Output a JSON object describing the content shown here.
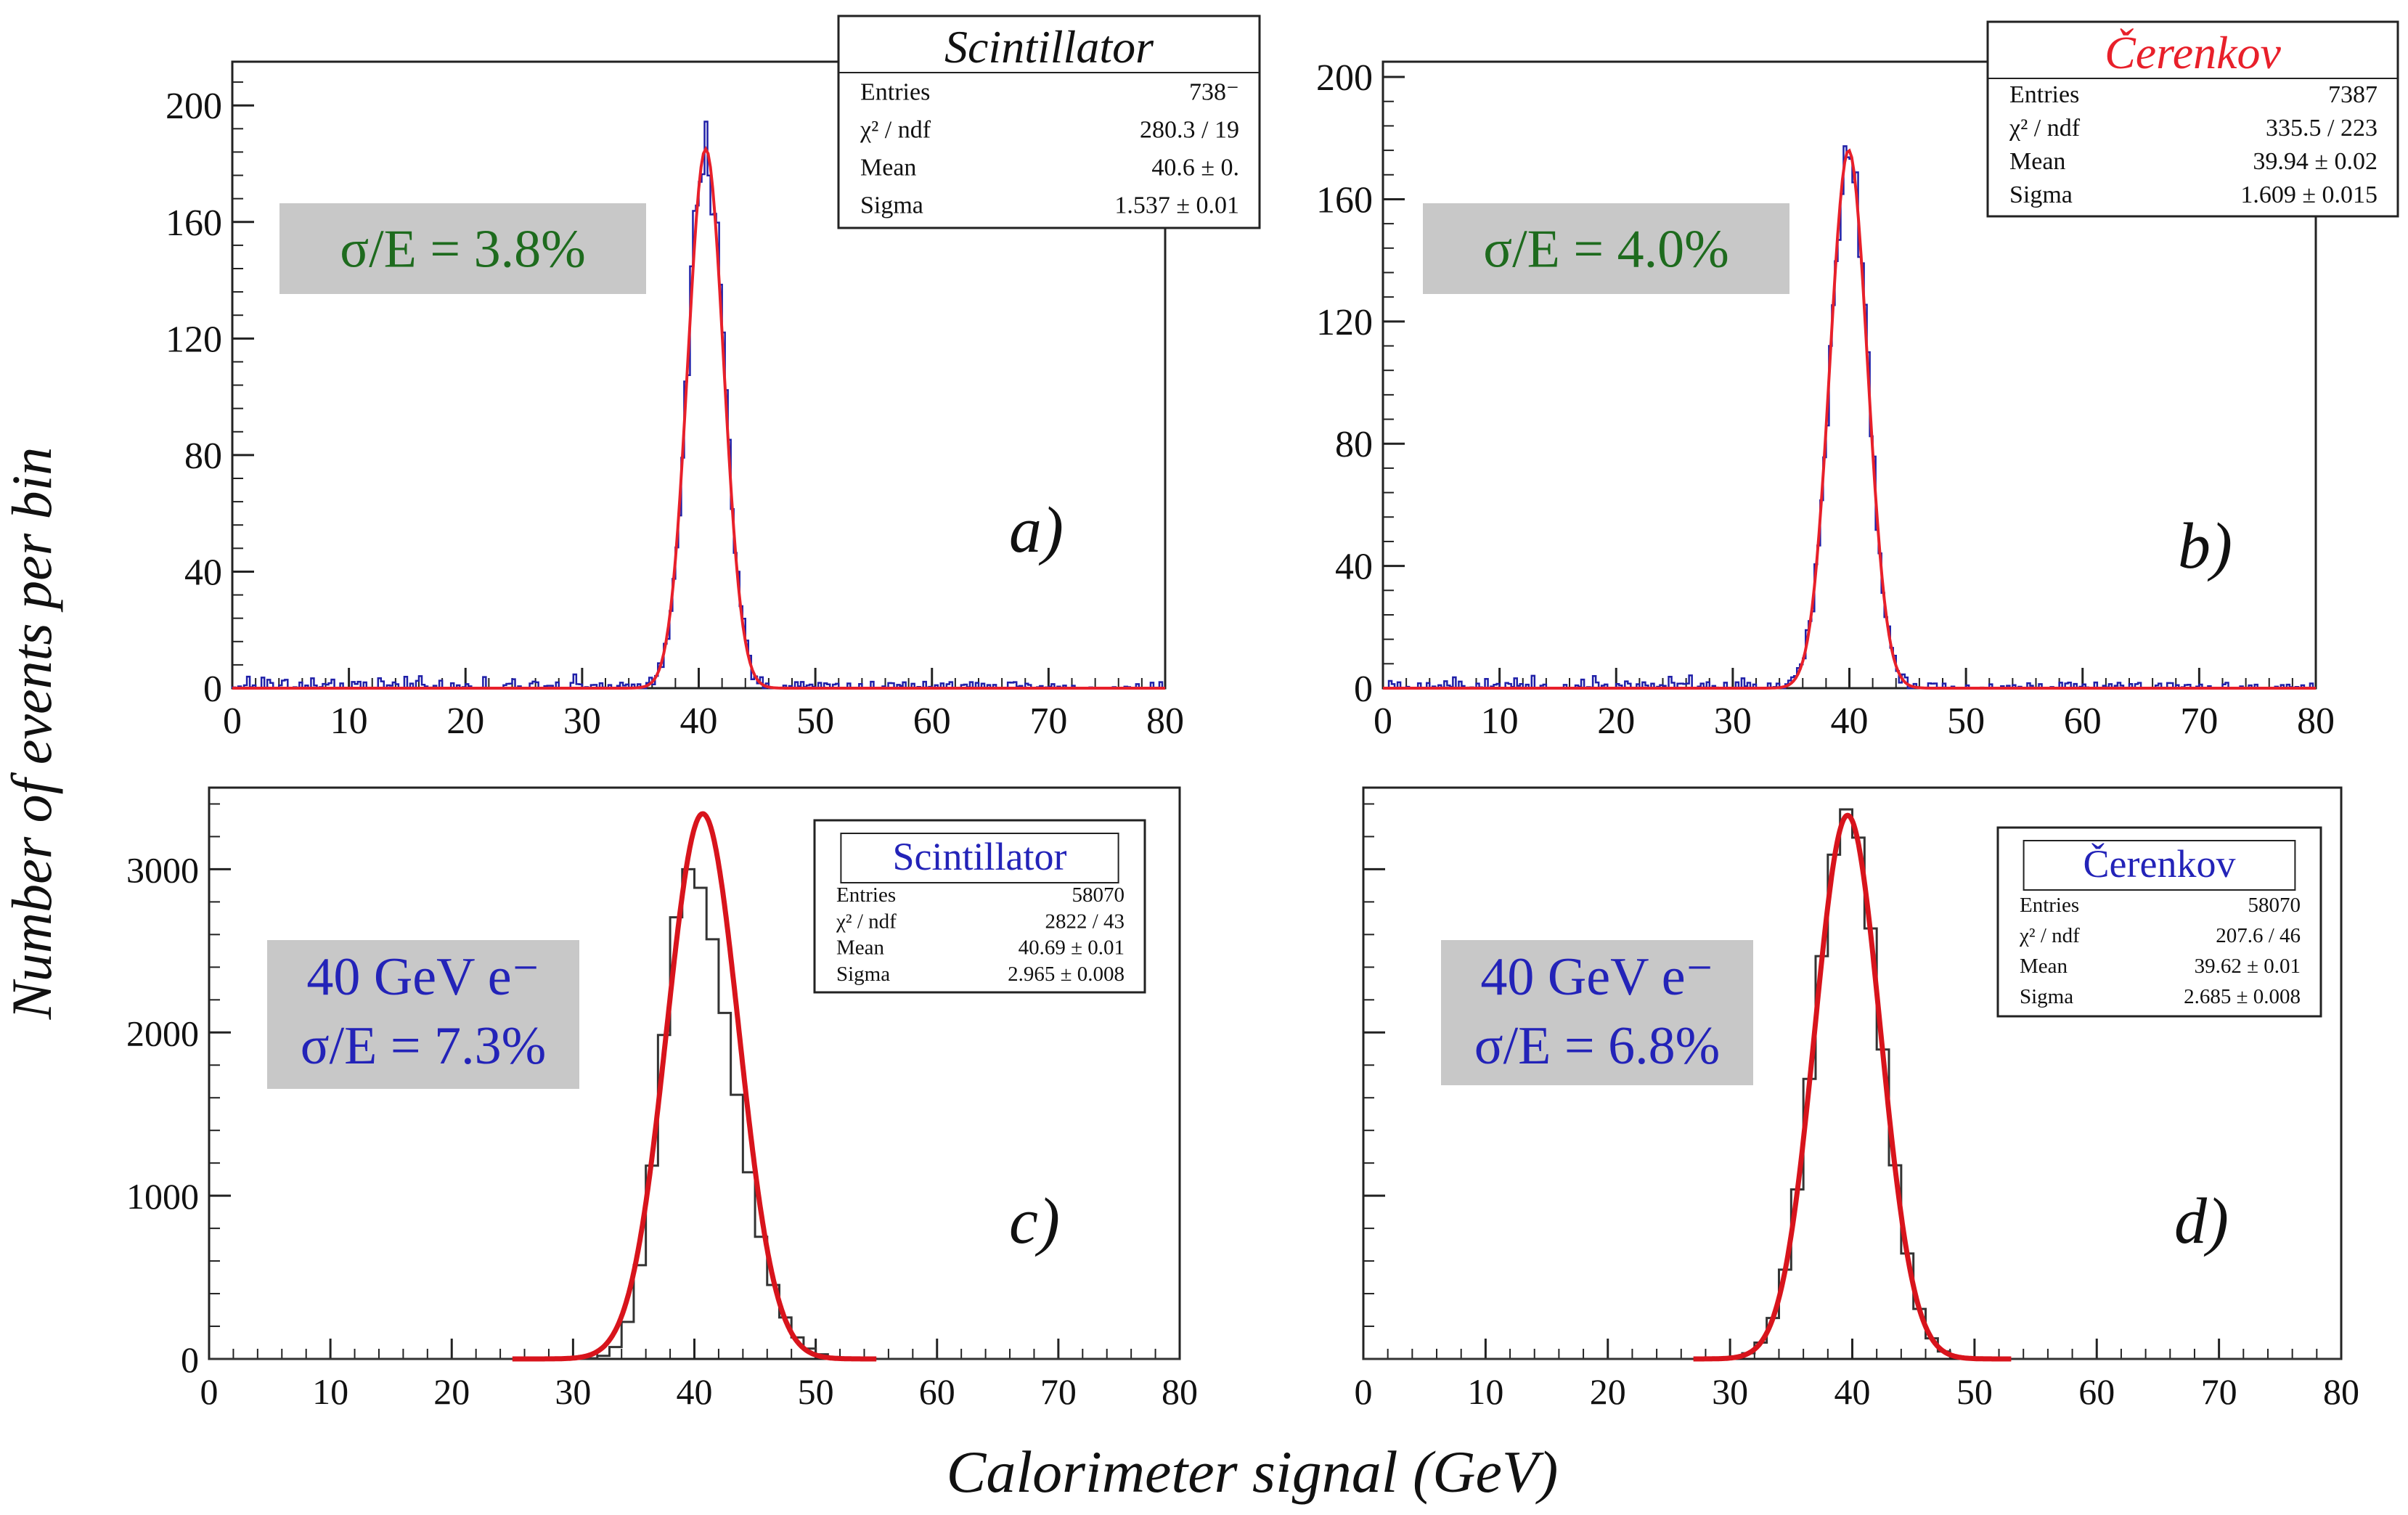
{
  "figure": {
    "ylabel": "Number of events per bin",
    "xlabel": "Calorimeter signal (GeV)"
  },
  "chart_data": [
    {
      "id": "a",
      "type": "histogram",
      "panel_label": "a)",
      "xlim": [
        0,
        80
      ],
      "ylim": [
        0,
        215
      ],
      "xticks": [
        0,
        10,
        20,
        30,
        40,
        50,
        60,
        70,
        80
      ],
      "yticks": [
        0,
        40,
        80,
        120,
        160,
        200
      ],
      "series": [
        {
          "kind": "histogram",
          "color": "#1f1fa8",
          "shape": "gauss",
          "mean": 40.6,
          "sigma": 1.537,
          "peak": 185,
          "noise": 14,
          "bins": 320
        },
        {
          "kind": "fit",
          "color": "#e8202a",
          "mean": 40.6,
          "sigma": 1.537,
          "peak": 185
        }
      ],
      "stats": {
        "title": "Scintillator",
        "title_color": "#111111",
        "title_style": "italic",
        "rows": [
          {
            "label": "Entries",
            "value": "738⁻"
          },
          {
            "label": "χ² / ndf",
            "value": "280.3 / 19"
          },
          {
            "label": "Mean",
            "value": "40.6 ± 0."
          },
          {
            "label": "Sigma",
            "value": "1.537 ± 0.01"
          }
        ]
      },
      "annotation": {
        "lines": [
          "σ/E = 3.8%"
        ],
        "color": "#1e6b1e"
      }
    },
    {
      "id": "b",
      "type": "histogram",
      "panel_label": "b)",
      "xlim": [
        0,
        80
      ],
      "ylim": [
        0,
        205
      ],
      "xticks": [
        0,
        10,
        20,
        30,
        40,
        50,
        60,
        70,
        80
      ],
      "yticks": [
        0,
        40,
        80,
        120,
        160,
        200
      ],
      "series": [
        {
          "kind": "histogram",
          "color": "#1f1fa8",
          "shape": "gauss",
          "mean": 39.94,
          "sigma": 1.609,
          "peak": 176,
          "noise": 12,
          "bins": 320
        },
        {
          "kind": "fit",
          "color": "#e8202a",
          "mean": 39.94,
          "sigma": 1.609,
          "peak": 176
        }
      ],
      "stats": {
        "title": "Čerenkov",
        "title_color": "#e8202a",
        "title_style": "italic",
        "rows": [
          {
            "label": "Entries",
            "value": "7387"
          },
          {
            "label": "χ² / ndf",
            "value": "335.5 / 223"
          },
          {
            "label": "Mean",
            "value": "39.94 ± 0.02"
          },
          {
            "label": "Sigma",
            "value": "1.609 ± 0.015"
          }
        ]
      },
      "annotation": {
        "lines": [
          "σ/E = 4.0%"
        ],
        "color": "#1e6b1e"
      }
    },
    {
      "id": "c",
      "type": "histogram",
      "panel_label": "c)",
      "xlim": [
        0,
        80
      ],
      "ylim": [
        0,
        3500
      ],
      "xticks": [
        0,
        10,
        20,
        30,
        40,
        50,
        60,
        70,
        80
      ],
      "yticks": [
        0,
        1000,
        2000,
        3000
      ],
      "series": [
        {
          "kind": "histogram",
          "color": "#333333",
          "shape": "skew",
          "mean": 39.5,
          "sigma_left": 2.2,
          "sigma_right": 3.6,
          "peak": 3000,
          "noise": 0,
          "bins": 80
        },
        {
          "kind": "fit",
          "color": "#d8141c",
          "mean": 40.69,
          "sigma": 2.965,
          "peak": 3340,
          "xrange": [
            25,
            55
          ]
        }
      ],
      "stats": {
        "title": "Scintillator",
        "title_color": "#2323b8",
        "title_style": "normal",
        "rows": [
          {
            "label": "Entries",
            "value": "58070"
          },
          {
            "label": "χ² / ndf",
            "value": "2822 / 43"
          },
          {
            "label": "Mean",
            "value": "40.69 ± 0.01"
          },
          {
            "label": "Sigma",
            "value": "2.965 ± 0.008"
          }
        ]
      },
      "annotation": {
        "lines": [
          "40 GeV e⁻",
          "σ/E = 7.3%"
        ],
        "color": "#2323b8"
      }
    },
    {
      "id": "d",
      "type": "histogram",
      "panel_label": "d)",
      "xlim": [
        0,
        80
      ],
      "ylim": [
        0,
        3500
      ],
      "xticks": [
        0,
        10,
        20,
        30,
        40,
        50,
        60,
        70,
        80
      ],
      "yticks": [],
      "series": [
        {
          "kind": "histogram",
          "color": "#333333",
          "shape": "gauss",
          "mean": 39.62,
          "sigma": 2.685,
          "peak": 3370,
          "noise": 0,
          "bins": 80
        },
        {
          "kind": "fit",
          "color": "#d8141c",
          "mean": 39.62,
          "sigma": 2.685,
          "peak": 3330,
          "xrange": [
            27,
            53
          ]
        }
      ],
      "stats": {
        "title": "Čerenkov",
        "title_color": "#2323b8",
        "title_style": "normal",
        "rows": [
          {
            "label": "Entries",
            "value": "58070"
          },
          {
            "label": "χ² / ndf",
            "value": "207.6 / 46"
          },
          {
            "label": "Mean",
            "value": "39.62 ± 0.01"
          },
          {
            "label": "Sigma",
            "value": "2.685 ± 0.008"
          }
        ]
      },
      "annotation": {
        "lines": [
          "40 GeV e⁻",
          "σ/E = 6.8%"
        ],
        "color": "#2323b8"
      }
    }
  ]
}
